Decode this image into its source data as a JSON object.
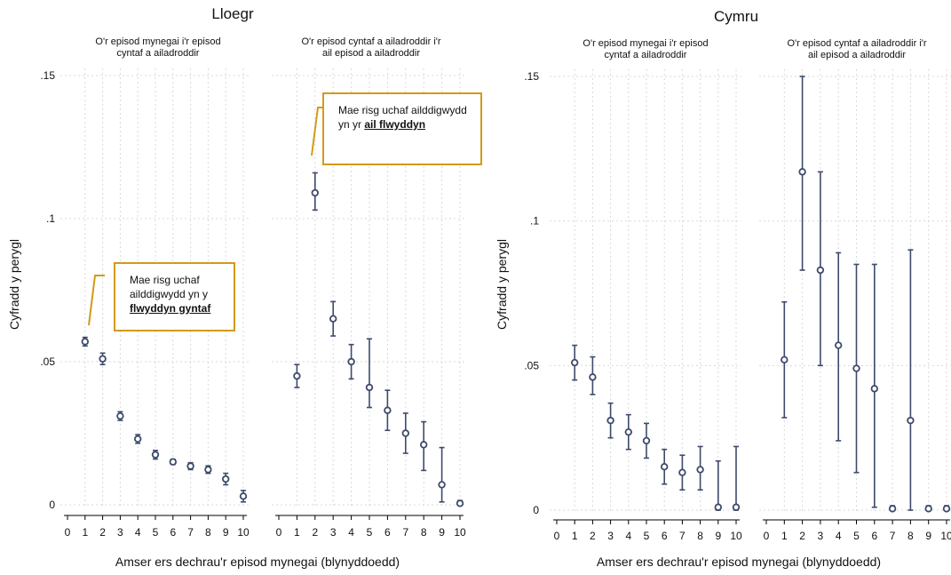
{
  "colors": {
    "marker": "#3d4a6b",
    "grid": "#d9d9d9",
    "axis": "#000000",
    "annotation_border": "#d29a1a"
  },
  "chart_data": [
    {
      "type": "scatter",
      "title": "Lloegr",
      "ylabel": "Cyfradd y perygl",
      "xlabel": "Amser ers dechrau'r episod mynegai (blynyddoedd)",
      "ylim": [
        0,
        0.15
      ],
      "yticks": [
        0,
        0.05,
        0.1,
        0.15
      ],
      "ytick_labels": [
        "0",
        ".05",
        ".1",
        ".15"
      ],
      "xticks": [
        "0",
        "1",
        "2",
        "3",
        "4",
        "5",
        "6",
        "7",
        "8",
        "9",
        "10"
      ],
      "grid": true,
      "panels": [
        {
          "subtitle_lines": [
            "O'r episod mynegai i'r episod",
            "cyntaf a ailadroddir"
          ],
          "x": [
            1,
            2,
            3,
            4,
            5,
            6,
            7,
            8,
            9,
            10
          ],
          "y": [
            0.057,
            0.051,
            0.031,
            0.023,
            0.0175,
            0.015,
            0.0135,
            0.0123,
            0.009,
            0.003
          ],
          "lower": [
            0.0555,
            0.049,
            0.0295,
            0.0215,
            0.016,
            0.0141,
            0.0123,
            0.011,
            0.007,
            0.001
          ],
          "upper": [
            0.0585,
            0.053,
            0.0325,
            0.0245,
            0.019,
            0.0159,
            0.0147,
            0.0136,
            0.011,
            0.005
          ],
          "annotation": {
            "pre": "Mae risg uchaf ailddigwydd yn y ",
            "highlight": "flwyddyn gyntaf"
          }
        },
        {
          "subtitle_lines": [
            "O'r episod cyntaf a ailadroddir i'r",
            "ail episod a ailadroddir"
          ],
          "x": [
            1,
            2,
            3,
            4,
            5,
            6,
            7,
            8,
            9,
            10
          ],
          "y": [
            0.045,
            0.109,
            0.065,
            0.05,
            0.041,
            0.033,
            0.025,
            0.021,
            0.007,
            0.0005
          ],
          "lower": [
            0.041,
            0.103,
            0.059,
            0.044,
            0.034,
            0.026,
            0.018,
            0.012,
            0.001,
            0
          ],
          "upper": [
            0.049,
            0.116,
            0.071,
            0.056,
            0.058,
            0.04,
            0.032,
            0.029,
            0.02,
            0.0015
          ],
          "annotation": {
            "pre": "Mae risg uchaf ailddigwydd yn yr ",
            "highlight": "ail flwyddyn"
          }
        }
      ]
    },
    {
      "type": "scatter",
      "title": "Cymru",
      "ylabel": "Cyfradd y perygl",
      "xlabel": "Amser ers dechrau'r episod mynegai (blynyddoedd)",
      "ylim": [
        0,
        0.15
      ],
      "yticks": [
        0,
        0.05,
        0.1,
        0.15
      ],
      "ytick_labels": [
        "0",
        ".05",
        ".1",
        ".15"
      ],
      "xticks": [
        "0",
        "1",
        "2",
        "3",
        "4",
        "5",
        "6",
        "7",
        "8",
        "9",
        "10"
      ],
      "grid": true,
      "panels": [
        {
          "subtitle_lines": [
            "O'r episod mynegai i'r episod",
            "cyntaf a ailadroddir"
          ],
          "x": [
            1,
            2,
            3,
            4,
            5,
            6,
            7,
            8,
            9,
            10
          ],
          "y": [
            0.051,
            0.046,
            0.031,
            0.027,
            0.024,
            0.015,
            0.013,
            0.014,
            0.001,
            0.001
          ],
          "lower": [
            0.045,
            0.04,
            0.025,
            0.021,
            0.018,
            0.009,
            0.007,
            0.007,
            0,
            0
          ],
          "upper": [
            0.057,
            0.053,
            0.037,
            0.033,
            0.03,
            0.021,
            0.019,
            0.022,
            0.017,
            0.022
          ]
        },
        {
          "subtitle_lines": [
            "O'r episod cyntaf a ailadroddir i'r",
            "ail episod a ailadroddir"
          ],
          "x": [
            1,
            2,
            3,
            4,
            5,
            6,
            7,
            8,
            9,
            10
          ],
          "y": [
            0.052,
            0.117,
            0.083,
            0.057,
            0.049,
            0.042,
            0.0005,
            0.031,
            0.0005,
            0.0005
          ],
          "lower": [
            0.032,
            0.083,
            0.05,
            0.024,
            0.013,
            0.001,
            0,
            0,
            0,
            0
          ],
          "upper": [
            0.072,
            0.15,
            0.117,
            0.089,
            0.085,
            0.085,
            0.0015,
            0.09,
            0.0015,
            0.0015
          ]
        }
      ]
    }
  ]
}
